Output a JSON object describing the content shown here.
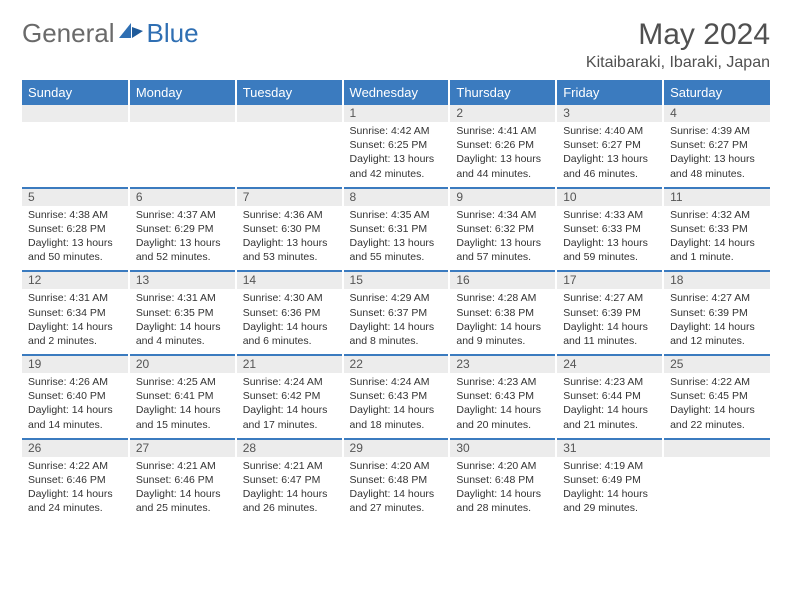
{
  "logo": {
    "word1": "General",
    "word2": "Blue",
    "color1": "#6a6a6a",
    "color2": "#2f6fb3"
  },
  "header": {
    "title": "May 2024",
    "location": "Kitaibaraki, Ibaraki, Japan"
  },
  "theme": {
    "header_bg": "#3b7bbf",
    "header_fg": "#ffffff",
    "daynum_bg": "#ececec",
    "border": "#3b7bbf"
  },
  "dayNames": [
    "Sunday",
    "Monday",
    "Tuesday",
    "Wednesday",
    "Thursday",
    "Friday",
    "Saturday"
  ],
  "leadingBlanks": 3,
  "days": [
    {
      "n": 1,
      "sr": "4:42 AM",
      "ss": "6:25 PM",
      "dl": "13 hours and 42 minutes."
    },
    {
      "n": 2,
      "sr": "4:41 AM",
      "ss": "6:26 PM",
      "dl": "13 hours and 44 minutes."
    },
    {
      "n": 3,
      "sr": "4:40 AM",
      "ss": "6:27 PM",
      "dl": "13 hours and 46 minutes."
    },
    {
      "n": 4,
      "sr": "4:39 AM",
      "ss": "6:27 PM",
      "dl": "13 hours and 48 minutes."
    },
    {
      "n": 5,
      "sr": "4:38 AM",
      "ss": "6:28 PM",
      "dl": "13 hours and 50 minutes."
    },
    {
      "n": 6,
      "sr": "4:37 AM",
      "ss": "6:29 PM",
      "dl": "13 hours and 52 minutes."
    },
    {
      "n": 7,
      "sr": "4:36 AM",
      "ss": "6:30 PM",
      "dl": "13 hours and 53 minutes."
    },
    {
      "n": 8,
      "sr": "4:35 AM",
      "ss": "6:31 PM",
      "dl": "13 hours and 55 minutes."
    },
    {
      "n": 9,
      "sr": "4:34 AM",
      "ss": "6:32 PM",
      "dl": "13 hours and 57 minutes."
    },
    {
      "n": 10,
      "sr": "4:33 AM",
      "ss": "6:33 PM",
      "dl": "13 hours and 59 minutes."
    },
    {
      "n": 11,
      "sr": "4:32 AM",
      "ss": "6:33 PM",
      "dl": "14 hours and 1 minute."
    },
    {
      "n": 12,
      "sr": "4:31 AM",
      "ss": "6:34 PM",
      "dl": "14 hours and 2 minutes."
    },
    {
      "n": 13,
      "sr": "4:31 AM",
      "ss": "6:35 PM",
      "dl": "14 hours and 4 minutes."
    },
    {
      "n": 14,
      "sr": "4:30 AM",
      "ss": "6:36 PM",
      "dl": "14 hours and 6 minutes."
    },
    {
      "n": 15,
      "sr": "4:29 AM",
      "ss": "6:37 PM",
      "dl": "14 hours and 8 minutes."
    },
    {
      "n": 16,
      "sr": "4:28 AM",
      "ss": "6:38 PM",
      "dl": "14 hours and 9 minutes."
    },
    {
      "n": 17,
      "sr": "4:27 AM",
      "ss": "6:39 PM",
      "dl": "14 hours and 11 minutes."
    },
    {
      "n": 18,
      "sr": "4:27 AM",
      "ss": "6:39 PM",
      "dl": "14 hours and 12 minutes."
    },
    {
      "n": 19,
      "sr": "4:26 AM",
      "ss": "6:40 PM",
      "dl": "14 hours and 14 minutes."
    },
    {
      "n": 20,
      "sr": "4:25 AM",
      "ss": "6:41 PM",
      "dl": "14 hours and 15 minutes."
    },
    {
      "n": 21,
      "sr": "4:24 AM",
      "ss": "6:42 PM",
      "dl": "14 hours and 17 minutes."
    },
    {
      "n": 22,
      "sr": "4:24 AM",
      "ss": "6:43 PM",
      "dl": "14 hours and 18 minutes."
    },
    {
      "n": 23,
      "sr": "4:23 AM",
      "ss": "6:43 PM",
      "dl": "14 hours and 20 minutes."
    },
    {
      "n": 24,
      "sr": "4:23 AM",
      "ss": "6:44 PM",
      "dl": "14 hours and 21 minutes."
    },
    {
      "n": 25,
      "sr": "4:22 AM",
      "ss": "6:45 PM",
      "dl": "14 hours and 22 minutes."
    },
    {
      "n": 26,
      "sr": "4:22 AM",
      "ss": "6:46 PM",
      "dl": "14 hours and 24 minutes."
    },
    {
      "n": 27,
      "sr": "4:21 AM",
      "ss": "6:46 PM",
      "dl": "14 hours and 25 minutes."
    },
    {
      "n": 28,
      "sr": "4:21 AM",
      "ss": "6:47 PM",
      "dl": "14 hours and 26 minutes."
    },
    {
      "n": 29,
      "sr": "4:20 AM",
      "ss": "6:48 PM",
      "dl": "14 hours and 27 minutes."
    },
    {
      "n": 30,
      "sr": "4:20 AM",
      "ss": "6:48 PM",
      "dl": "14 hours and 28 minutes."
    },
    {
      "n": 31,
      "sr": "4:19 AM",
      "ss": "6:49 PM",
      "dl": "14 hours and 29 minutes."
    }
  ],
  "labels": {
    "sunrise": "Sunrise:",
    "sunset": "Sunset:",
    "daylight": "Daylight:"
  }
}
